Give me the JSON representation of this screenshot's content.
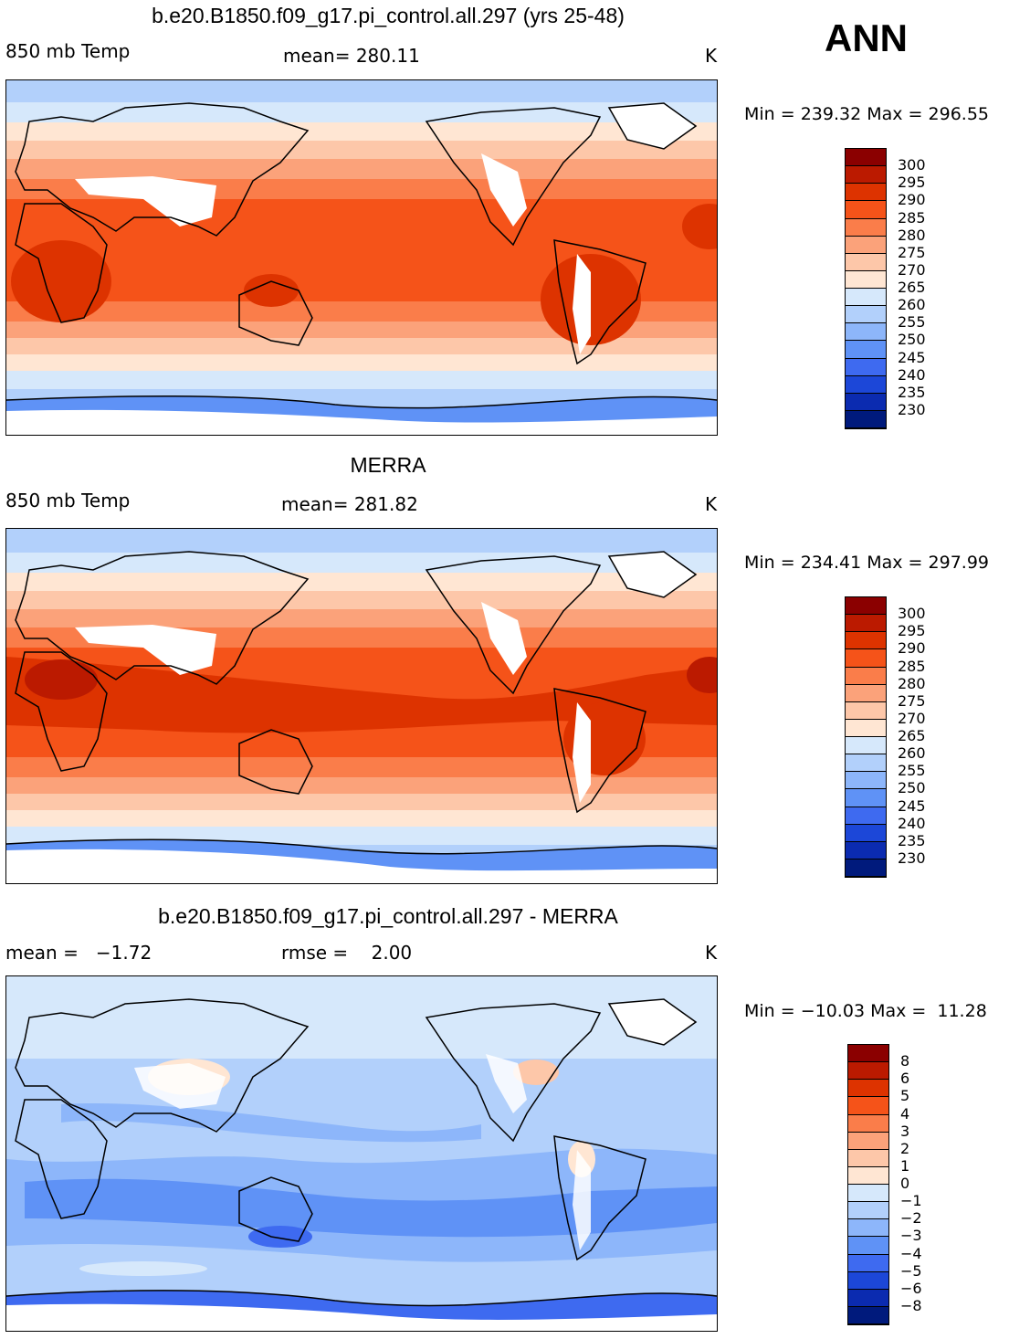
{
  "season": "ANN",
  "panels": [
    {
      "id": "model",
      "title": "b.e20.B1850.f09_g17.pi_control.all.297 (yrs 25-48)",
      "left_label": "850 mb Temp",
      "center_label": "mean= 280.11",
      "unit": "K",
      "minmax": "Min = 239.32 Max = 296.55",
      "colorbar": {
        "colors": [
          "#8b0000",
          "#bb1a00",
          "#dd3300",
          "#f55319",
          "#fa7d4a",
          "#fba27a",
          "#fdc7a9",
          "#ffe6d3",
          "#d6e8fb",
          "#b2d0fb",
          "#8db6fa",
          "#5f92f6",
          "#3e6af0",
          "#1c47d8",
          "#0b2bb0",
          "#001a7c"
        ],
        "labels": [
          "300",
          "295",
          "290",
          "285",
          "280",
          "275",
          "270",
          "265",
          "260",
          "255",
          "250",
          "245",
          "240",
          "235",
          "230"
        ]
      }
    },
    {
      "id": "obs",
      "title": "MERRA",
      "left_label": "850 mb Temp",
      "center_label": "mean= 281.82",
      "unit": "K",
      "minmax": "Min = 234.41 Max = 297.99",
      "colorbar": {
        "colors": [
          "#8b0000",
          "#bb1a00",
          "#dd3300",
          "#f55319",
          "#fa7d4a",
          "#fba27a",
          "#fdc7a9",
          "#ffe6d3",
          "#d6e8fb",
          "#b2d0fb",
          "#8db6fa",
          "#5f92f6",
          "#3e6af0",
          "#1c47d8",
          "#0b2bb0",
          "#001a7c"
        ],
        "labels": [
          "300",
          "295",
          "290",
          "285",
          "280",
          "275",
          "270",
          "265",
          "260",
          "255",
          "250",
          "245",
          "240",
          "235",
          "230"
        ]
      }
    },
    {
      "id": "diff",
      "title": "b.e20.B1850.f09_g17.pi_control.all.297 - MERRA",
      "left_label": "mean =   −1.72",
      "center_label": "rmse =    2.00",
      "unit": "K",
      "minmax": "Min = −10.03 Max =  11.28",
      "colorbar": {
        "colors": [
          "#8b0000",
          "#bb1a00",
          "#dd3300",
          "#f55319",
          "#fa7d4a",
          "#fba27a",
          "#fdc7a9",
          "#ffe6d3",
          "#d6e8fb",
          "#b2d0fb",
          "#8db6fa",
          "#5f92f6",
          "#3e6af0",
          "#1c47d8",
          "#0b2bb0",
          "#001a7c"
        ],
        "labels": [
          "8",
          "6",
          "5",
          "4",
          "3",
          "2",
          "1",
          "0",
          "−1",
          "−2",
          "−3",
          "−4",
          "−5",
          "−6",
          "−8"
        ]
      }
    }
  ]
}
